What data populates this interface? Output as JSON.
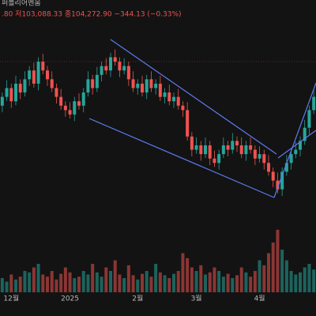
{
  "chart_data": {
    "type": "candlestick",
    "title": "퍼블리어멘움",
    "ohlc_text": ".80 저103,088.33 종104,272.90 −344.13 (−0.33%)",
    "categories": [
      null,
      null,
      "12월",
      null,
      null,
      null,
      null,
      null,
      null,
      null,
      null,
      null,
      null,
      null,
      null,
      "2025",
      null,
      null,
      null,
      null,
      null,
      null,
      null,
      null,
      null,
      null,
      null,
      null,
      null,
      null,
      "2월",
      null,
      null,
      null,
      null,
      null,
      null,
      null,
      null,
      null,
      null,
      null,
      null,
      "3월",
      null,
      null,
      null,
      null,
      null,
      null,
      null,
      null,
      null,
      null,
      null,
      null,
      null,
      "4월",
      null,
      null,
      null,
      null,
      null,
      null,
      null,
      null,
      null,
      null,
      null,
      null
    ],
    "open": [
      95000,
      97000,
      99000,
      96000,
      100000,
      98000,
      101000,
      103000,
      100000,
      105000,
      103000,
      101000,
      99000,
      97000,
      95000,
      94000,
      93000,
      96000,
      95000,
      98000,
      101000,
      99000,
      102000,
      104000,
      103000,
      106000,
      105000,
      103000,
      104000,
      101000,
      99000,
      100000,
      98000,
      101000,
      99000,
      100000,
      97000,
      98000,
      96000,
      97000,
      95000,
      94000,
      88000,
      85000,
      86000,
      84000,
      86000,
      83000,
      82000,
      84000,
      86000,
      85000,
      87000,
      86000,
      84000,
      86000,
      85000,
      83000,
      84000,
      82000,
      80000,
      78000,
      76000,
      80000,
      82000,
      84000,
      85000,
      87000,
      90000,
      94000
    ],
    "high": [
      98000,
      100800,
      100000,
      101800,
      101000,
      102800,
      104000,
      104800,
      106000,
      106800,
      104000,
      102800,
      100000,
      98800,
      96000,
      95800,
      97000,
      97800,
      99000,
      102800,
      102000,
      103800,
      105000,
      105800,
      107000,
      107800,
      106000,
      105800,
      105000,
      102800,
      101000,
      101800,
      102000,
      102800,
      101000,
      101800,
      99000,
      99800,
      98000,
      98800,
      96000,
      95800,
      89000,
      87800,
      87000,
      87800,
      87000,
      84800,
      85000,
      87800,
      87000,
      88800,
      88000,
      87800,
      87000,
      87800,
      86000,
      85800,
      85000,
      83800,
      81000,
      79800,
      81000,
      83800,
      85000,
      86800,
      88000,
      91800,
      95000,
      98800
    ],
    "low": [
      93500,
      96100,
      94500,
      95100,
      96500,
      97100,
      99500,
      99100,
      98500,
      102100,
      99500,
      98100,
      95500,
      94100,
      92500,
      92100,
      91500,
      94100,
      93500,
      97100,
      97500,
      98100,
      100500,
      102100,
      101500,
      104100,
      101500,
      102100,
      99500,
      98100,
      97500,
      97100,
      96500,
      98100,
      97500,
      96100,
      95500,
      95100,
      94500,
      94100,
      92500,
      87100,
      83500,
      84100,
      82500,
      83100,
      81500,
      81100,
      80500,
      83100,
      83500,
      84100,
      84500,
      83100,
      82500,
      84100,
      81500,
      82100,
      80500,
      79100,
      76500,
      75100,
      74500,
      79100,
      80500,
      83100,
      83500,
      86100,
      88500,
      93100
    ],
    "close": [
      97000,
      99000,
      96000,
      100000,
      98000,
      101000,
      103000,
      100000,
      105000,
      103000,
      101000,
      99000,
      97000,
      95000,
      94000,
      93000,
      96000,
      95000,
      98000,
      101000,
      99000,
      102000,
      104000,
      103000,
      106000,
      105000,
      103000,
      104000,
      101000,
      99000,
      100000,
      98000,
      101000,
      99000,
      100000,
      97000,
      98000,
      96000,
      97000,
      95000,
      94000,
      88000,
      85000,
      86000,
      84000,
      86000,
      83000,
      82000,
      84000,
      86000,
      85000,
      87000,
      86000,
      84000,
      86000,
      85000,
      83000,
      84000,
      82000,
      80000,
      78000,
      76000,
      80000,
      82000,
      84000,
      85000,
      87000,
      90000,
      94000,
      97000
    ],
    "volume": [
      20,
      15,
      25,
      18,
      22,
      30,
      28,
      35,
      40,
      25,
      22,
      30,
      18,
      26,
      35,
      28,
      20,
      22,
      30,
      25,
      40,
      28,
      22,
      35,
      30,
      45,
      25,
      20,
      38,
      24,
      18,
      26,
      30,
      22,
      40,
      28,
      24,
      20,
      26,
      30,
      55,
      48,
      35,
      30,
      38,
      25,
      28,
      35,
      30,
      22,
      26,
      20,
      24,
      35,
      28,
      22,
      30,
      45,
      38,
      55,
      70,
      88,
      60,
      45,
      30,
      25,
      28,
      35,
      40,
      32
    ],
    "ylim": [
      72000,
      119000
    ],
    "y2lim": [
      0,
      100
    ],
    "up_color": "#26a69a",
    "down_color": "#ef5350"
  }
}
